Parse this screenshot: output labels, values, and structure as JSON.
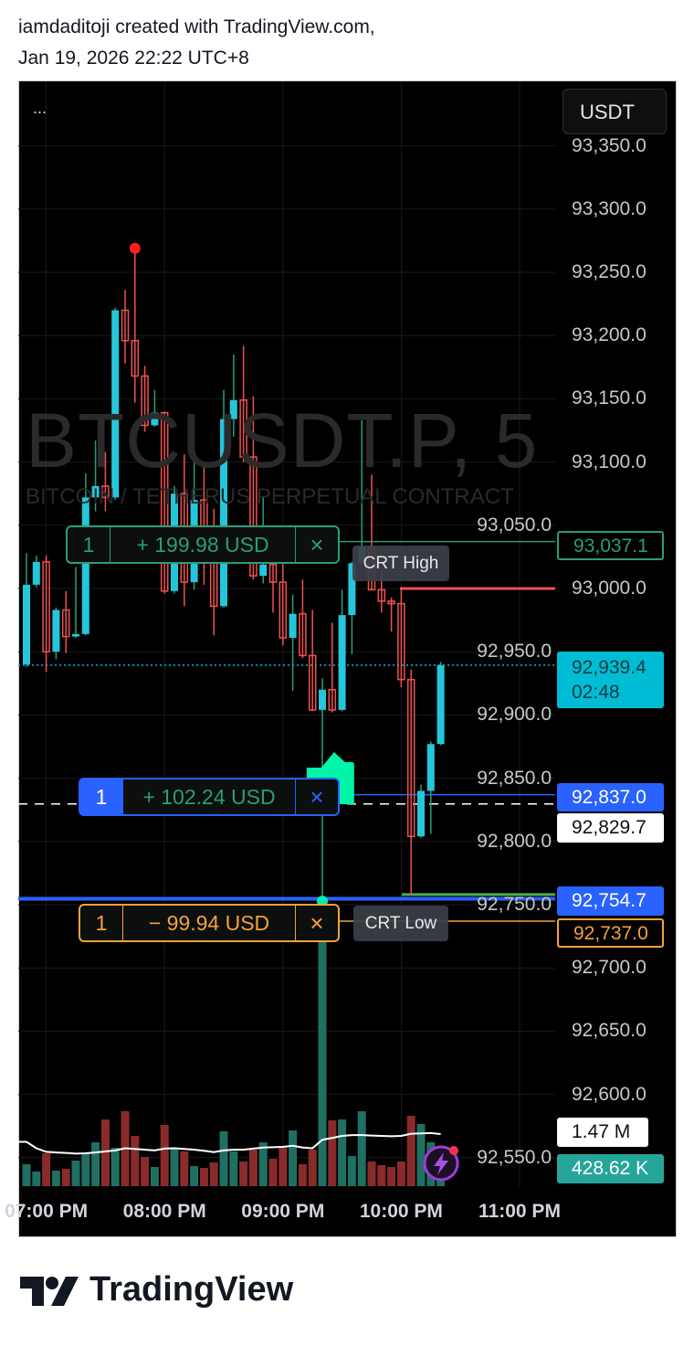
{
  "header": {
    "line1": "iamdaditoji created with TradingView.com,",
    "line2": "Jan 19, 2026 22:22 UTC+8"
  },
  "toolbar": {
    "more_label": "...",
    "currency_label": "USDT"
  },
  "watermark": {
    "symbol": "BTCUSDT.P, 5",
    "description": "BITCOIN / TETHERUS PERPETUAL CONTRACT"
  },
  "orders": {
    "take_profit": {
      "qty": "1",
      "pnl": "+ 199.98 USD",
      "close": "×",
      "price_label": "93,037.1",
      "color": "#2a9d78"
    },
    "entry": {
      "qty": "1",
      "pnl": "+ 102.24 USD",
      "close": "×",
      "price_label": "92,837.0",
      "color": "#2962ff"
    },
    "stop_loss": {
      "qty": "1",
      "pnl": "− 99.94 USD",
      "close": "×",
      "price_label": "92,737.0",
      "color": "#f4a23a"
    }
  },
  "crt": {
    "high_label": "CRT High",
    "low_label": "CRT Low",
    "high_color": "#f0514f",
    "low_color": "#4caf50"
  },
  "last_price": {
    "price": "92,939.4",
    "countdown": "02:48",
    "color": "#00bcd4"
  },
  "crosshair_price": "92,829.7",
  "blue_line_price": "92,754.7",
  "volume_labels": {
    "ma": "1.47 M",
    "current": "428.62 K",
    "current_color": "#26a69a"
  },
  "footer": {
    "brand": "TradingView"
  },
  "icons": {
    "flash": "lightning-icon",
    "logo": "tradingview-logo"
  },
  "chart_data": {
    "type": "candlestick",
    "symbol": "BTCUSDT.P",
    "interval": "5",
    "ylim": [
      92550,
      93360
    ],
    "grid": true,
    "up_color": "#26c6da",
    "down_color": "#f0514f",
    "y_ticks": [
      93350,
      93300,
      93250,
      93200,
      93150,
      93100,
      93050,
      93000,
      92950,
      92900,
      92850,
      92800,
      92750,
      92700,
      92650,
      92600,
      92550
    ],
    "y_tick_labels": [
      "93,350.0",
      "93,300.0",
      "93,250.0",
      "93,200.0",
      "93,150.0",
      "93,100.0",
      "93,050.0",
      "93,000.0",
      "92,950.0",
      "92,900.0",
      "92,850.0",
      "92,800.0",
      "92,750.0",
      "92,700.0",
      "92,650.0",
      "92,600.0",
      "92,550.0"
    ],
    "x_ticks": [
      "19:00",
      "20:00",
      "21:00",
      "22:00",
      "23:00"
    ],
    "x_tick_labels": [
      "07:00 PM",
      "08:00 PM",
      "09:00 PM",
      "10:00 PM",
      "11:00 PM"
    ],
    "times": [
      "18:50",
      "18:55",
      "19:00",
      "19:05",
      "19:10",
      "19:15",
      "19:20",
      "19:25",
      "19:30",
      "19:35",
      "19:40",
      "19:45",
      "19:50",
      "19:55",
      "20:00",
      "20:05",
      "20:10",
      "20:15",
      "20:20",
      "20:25",
      "20:30",
      "20:35",
      "20:40",
      "20:45",
      "20:50",
      "20:55",
      "21:00",
      "21:05",
      "21:10",
      "21:15",
      "21:20",
      "21:25",
      "21:30",
      "21:35",
      "21:40",
      "21:45",
      "21:50",
      "21:55",
      "22:00",
      "22:05",
      "22:10",
      "22:15",
      "22:20"
    ],
    "ohlc": [
      [
        92940,
        93028,
        92938,
        93003
      ],
      [
        93003,
        93026,
        93001,
        93021
      ],
      [
        93021,
        93026,
        92934,
        92950
      ],
      [
        92950,
        92985,
        92944,
        92983
      ],
      [
        92983,
        92998,
        92949,
        92962
      ],
      [
        92962,
        93017,
        92961,
        92964
      ],
      [
        92964,
        93091,
        92963,
        93072
      ],
      [
        93072,
        93117,
        93061,
        93081
      ],
      [
        93081,
        93108,
        93061,
        93072
      ],
      [
        93072,
        93222,
        93070,
        93220
      ],
      [
        93220,
        93236,
        93178,
        93196
      ],
      [
        93196,
        93269,
        93147,
        93168
      ],
      [
        93168,
        93176,
        93124,
        93129
      ],
      [
        93129,
        93157,
        93128,
        93139
      ],
      [
        93139,
        93140,
        92996,
        92998
      ],
      [
        92998,
        93081,
        92996,
        93075
      ],
      [
        93075,
        93106,
        92986,
        93005
      ],
      [
        93005,
        93109,
        92999,
        93070
      ],
      [
        93070,
        93099,
        93003,
        93032
      ],
      [
        93032,
        93063,
        92963,
        92986
      ],
      [
        92986,
        93157,
        92985,
        93134
      ],
      [
        93134,
        93185,
        93120,
        93149
      ],
      [
        93149,
        93192,
        93100,
        93104
      ],
      [
        93104,
        93152,
        93007,
        93010
      ],
      [
        93010,
        93072,
        93004,
        93019
      ],
      [
        93019,
        93032,
        92981,
        93005
      ],
      [
        93005,
        93025,
        92955,
        92961
      ],
      [
        92961,
        92995,
        92919,
        92980
      ],
      [
        92980,
        93007,
        92945,
        92947
      ],
      [
        92947,
        92983,
        92903,
        92904
      ],
      [
        92904,
        92929,
        92755,
        92920
      ],
      [
        92920,
        92973,
        92902,
        92904
      ],
      [
        92904,
        92999,
        92903,
        92979
      ],
      [
        92979,
        93021,
        92948,
        93020
      ],
      [
        93020,
        93133,
        93019,
        93033
      ],
      [
        93033,
        93090,
        92999,
        92999
      ],
      [
        92999,
        93014,
        92981,
        92990
      ],
      [
        92990,
        92993,
        92966,
        92988
      ],
      [
        92988,
        92999,
        92922,
        92928
      ],
      [
        92928,
        92936,
        92757,
        92804
      ],
      [
        92804,
        92845,
        92803,
        92840
      ],
      [
        92840,
        92879,
        92806,
        92877
      ],
      [
        92877,
        92942,
        92876,
        92939.4
      ]
    ],
    "volume": [
      619000,
      413000,
      929000,
      439000,
      490000,
      722000,
      929000,
      1238000,
      1883000,
      1084000,
      2116000,
      1419000,
      826000,
      542000,
      1729000,
      1084000,
      980000,
      568000,
      516000,
      671000,
      1548000,
      980000,
      697000,
      1032000,
      1238000,
      774000,
      1084000,
      1574000,
      619000,
      1032000,
      7740000,
      1858000,
      1883000,
      851000,
      2116000,
      697000,
      593000,
      542000,
      697000,
      1987000,
      1754000,
      1238000,
      428620
    ],
    "volume_ma": [
      1250000,
      1070000,
      970000,
      950000,
      940000,
      920000,
      930000,
      950000,
      980000,
      1010000,
      1070000,
      1050000,
      1030000,
      1010000,
      1060000,
      1070000,
      1050000,
      1030000,
      1000000,
      960000,
      1010000,
      1030000,
      1030000,
      1060000,
      1090000,
      1100000,
      1110000,
      1140000,
      1090000,
      1070000,
      1310000,
      1360000,
      1420000,
      1440000,
      1440000,
      1430000,
      1420000,
      1410000,
      1420000,
      1480000,
      1490000,
      1500000,
      1470000
    ],
    "levels": {
      "take_profit": 93037.1,
      "crt_high": 93000.0,
      "last_price": 92939.4,
      "entry": 92837.0,
      "crosshair": 92829.7,
      "crt_low": 92758.0,
      "blue_line": 92754.7,
      "stop_loss": 92737.0
    },
    "markers": {
      "high_dot_time": "19:45",
      "low_dot_time": "21:20",
      "buy_arrow_time": "21:25"
    }
  }
}
